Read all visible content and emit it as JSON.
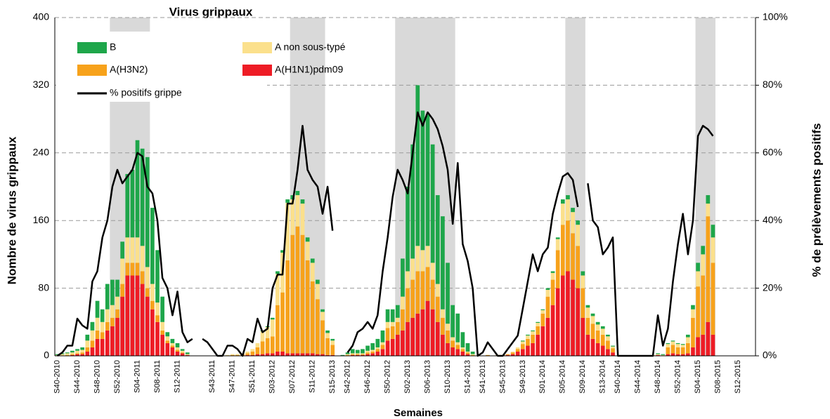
{
  "chart_data": {
    "type": "bar",
    "stacked": true,
    "title": "Virus grippaux",
    "x_label": "Semaines",
    "y_label": "Nombre de virus grippaux",
    "y2_label": "% de prélèvements positifs",
    "categories": [
      "S40-2010",
      null,
      null,
      null,
      "S44-2010",
      null,
      null,
      null,
      "S48-2010",
      null,
      null,
      null,
      "S52-2010",
      null,
      null,
      null,
      "S04-2011",
      null,
      null,
      null,
      "S08-2011",
      null,
      null,
      null,
      "S12-2011",
      null,
      null,
      null,
      null,
      null,
      null,
      "S43-2011",
      null,
      null,
      null,
      "S47-2011",
      null,
      null,
      null,
      "S51-2011",
      null,
      null,
      null,
      "S03-2012",
      null,
      null,
      null,
      "S07-2012",
      null,
      null,
      null,
      "S11-2012",
      null,
      null,
      null,
      "S15-2013",
      null,
      null,
      "S42-2012",
      null,
      null,
      null,
      "S46-2012",
      null,
      null,
      null,
      "S50-2012",
      null,
      null,
      null,
      "S02-2013",
      null,
      null,
      null,
      "S06-2013",
      null,
      null,
      null,
      "S10-2013",
      null,
      null,
      null,
      "S14-2013",
      null,
      null,
      "S41-2013",
      null,
      null,
      null,
      "S45-2013",
      null,
      null,
      null,
      "S49-2013",
      null,
      null,
      null,
      "S01-2014",
      null,
      null,
      null,
      "S05-2014",
      null,
      null,
      null,
      "S09-2014",
      null,
      null,
      null,
      "S13-2014",
      null,
      null,
      "S40-2014",
      null,
      null,
      null,
      "S44-2014",
      null,
      null,
      null,
      "S48-2014",
      null,
      null,
      null,
      "S52-2014",
      null,
      null,
      null,
      "S04-2015",
      null,
      null,
      null,
      "S08-2015",
      null,
      null,
      null,
      "S12-2015",
      null,
      null,
      null
    ],
    "series": [
      {
        "name": "B",
        "color": "#1ea64a",
        "values": [
          1,
          1,
          1,
          2,
          2,
          3,
          7,
          10,
          20,
          15,
          30,
          30,
          20,
          20,
          75,
          80,
          115,
          115,
          130,
          90,
          62,
          30,
          5,
          5,
          5,
          2,
          2,
          0,
          0,
          0,
          0,
          0,
          0,
          0,
          0,
          0,
          0,
          0,
          0,
          0,
          0,
          1,
          1,
          2,
          3,
          3,
          4,
          5,
          5,
          5,
          5,
          5,
          5,
          3,
          3,
          2,
          0,
          1,
          2,
          5,
          4,
          5,
          6,
          8,
          10,
          14,
          15,
          15,
          15,
          45,
          100,
          135,
          190,
          165,
          155,
          140,
          105,
          110,
          72,
          38,
          34,
          18,
          10,
          3,
          0,
          0,
          0,
          0,
          0,
          0,
          0,
          0,
          0,
          1,
          1,
          1,
          1,
          1,
          2,
          2,
          2,
          5,
          5,
          5,
          5,
          5,
          3,
          3,
          3,
          3,
          2,
          1,
          0,
          0,
          0,
          0,
          0,
          0,
          0,
          0,
          1,
          1,
          1,
          1,
          1,
          1,
          3,
          5,
          10,
          10,
          10,
          15,
          0,
          0,
          0,
          0,
          0,
          0,
          0,
          0
        ]
      },
      {
        "name": "A non sous-typé",
        "color": "#fbe08c",
        "values": [
          1,
          2,
          2,
          2,
          3,
          3,
          8,
          12,
          15,
          12,
          15,
          15,
          15,
          30,
          30,
          30,
          30,
          30,
          25,
          20,
          15,
          10,
          5,
          3,
          3,
          2,
          1,
          0,
          0,
          0,
          0,
          0,
          0,
          0,
          1,
          1,
          1,
          1,
          2,
          3,
          5,
          12,
          13,
          20,
          37,
          47,
          68,
          42,
          37,
          37,
          22,
          22,
          18,
          10,
          6,
          5,
          0,
          0,
          1,
          1,
          1,
          1,
          2,
          2,
          2,
          3,
          7,
          5,
          5,
          15,
          20,
          25,
          30,
          25,
          25,
          20,
          15,
          10,
          8,
          4,
          3,
          2,
          1,
          1,
          0,
          0,
          0,
          0,
          0,
          0,
          0,
          1,
          2,
          3,
          4,
          4,
          4,
          4,
          8,
          8,
          13,
          25,
          25,
          25,
          25,
          15,
          12,
          9,
          7,
          7,
          5,
          2,
          0,
          0,
          0,
          0,
          0,
          0,
          0,
          1,
          1,
          1,
          4,
          4,
          4,
          3,
          7,
          10,
          18,
          25,
          15,
          30,
          0,
          0,
          0,
          0,
          0,
          0,
          0,
          0
        ]
      },
      {
        "name": "A(H3N2)",
        "color": "#f7a21b",
        "values": [
          0,
          0,
          1,
          1,
          1,
          2,
          5,
          8,
          10,
          8,
          10,
          10,
          10,
          15,
          15,
          15,
          15,
          15,
          10,
          10,
          8,
          5,
          3,
          2,
          2,
          1,
          0,
          0,
          0,
          0,
          0,
          0,
          0,
          0,
          0,
          1,
          1,
          2,
          2,
          4,
          8,
          15,
          18,
          20,
          55,
          70,
          110,
          140,
          150,
          140,
          110,
          85,
          65,
          40,
          20,
          12,
          0,
          0,
          1,
          1,
          1,
          1,
          2,
          2,
          3,
          5,
          15,
          15,
          15,
          25,
          40,
          45,
          50,
          45,
          40,
          35,
          30,
          20,
          15,
          8,
          5,
          3,
          2,
          1,
          0,
          0,
          1,
          0,
          1,
          1,
          1,
          2,
          3,
          6,
          8,
          10,
          10,
          15,
          25,
          30,
          45,
          60,
          60,
          55,
          50,
          35,
          20,
          18,
          15,
          13,
          10,
          5,
          0,
          0,
          0,
          0,
          0,
          0,
          0,
          0,
          0,
          0,
          8,
          10,
          8,
          8,
          12,
          35,
          60,
          70,
          125,
          85,
          0,
          0,
          0,
          0,
          0,
          0,
          0,
          0
        ]
      },
      {
        "name": "A(H1N1)pdm09",
        "color": "#ee1c25",
        "values": [
          0,
          0,
          0,
          1,
          2,
          2,
          5,
          10,
          20,
          20,
          30,
          35,
          45,
          70,
          95,
          95,
          95,
          85,
          70,
          55,
          40,
          25,
          15,
          10,
          5,
          3,
          1,
          0,
          0,
          0,
          0,
          0,
          0,
          0,
          0,
          0,
          0,
          0,
          1,
          1,
          2,
          2,
          3,
          3,
          5,
          5,
          3,
          3,
          3,
          3,
          3,
          3,
          2,
          2,
          1,
          1,
          0,
          0,
          0,
          1,
          1,
          1,
          2,
          3,
          5,
          8,
          18,
          20,
          25,
          30,
          40,
          45,
          50,
          55,
          65,
          55,
          40,
          25,
          15,
          10,
          8,
          5,
          2,
          0,
          0,
          0,
          0,
          0,
          0,
          0,
          1,
          2,
          5,
          8,
          12,
          15,
          25,
          35,
          45,
          60,
          80,
          95,
          100,
          90,
          80,
          45,
          25,
          20,
          15,
          12,
          8,
          4,
          0,
          0,
          0,
          0,
          0,
          0,
          0,
          0,
          1,
          0,
          2,
          3,
          2,
          2,
          3,
          10,
          22,
          25,
          40,
          25,
          0,
          0,
          0,
          0,
          0,
          0,
          0,
          0
        ]
      },
      {
        "name": "% positifs grippe",
        "color": "#000000",
        "type": "line",
        "axis": "y2",
        "values": [
          0,
          1,
          3,
          3,
          11,
          9,
          8,
          22,
          25,
          35,
          40,
          50,
          55,
          51,
          53,
          55,
          60,
          59,
          50,
          48,
          40,
          23,
          20,
          12,
          19,
          7,
          4,
          5,
          null,
          5,
          4,
          2,
          0,
          0,
          3,
          3,
          2,
          0,
          5,
          4,
          11,
          7,
          8,
          20,
          24,
          24,
          45,
          45,
          55,
          68,
          55,
          52,
          50,
          42,
          50,
          37,
          null,
          null,
          1,
          3,
          7,
          8,
          10,
          8,
          12,
          25,
          35,
          47,
          55,
          52,
          48,
          60,
          72,
          68,
          72,
          70,
          67,
          62,
          55,
          39,
          57,
          33,
          28,
          20,
          0,
          1,
          4,
          2,
          0,
          0,
          2,
          4,
          6,
          14,
          22,
          30,
          25,
          30,
          32,
          42,
          48,
          53,
          54,
          52,
          44,
          null,
          51,
          40,
          38,
          30,
          32,
          35,
          0,
          0,
          0,
          0,
          0,
          0,
          0,
          0,
          12,
          3,
          8,
          22,
          33,
          42,
          30,
          40,
          65,
          68,
          67,
          65,
          null,
          null,
          null,
          null,
          null,
          null,
          null,
          null
        ]
      }
    ],
    "ylim": [
      0,
      400
    ],
    "yticks": [
      0,
      80,
      160,
      240,
      320,
      400
    ],
    "y2lim": [
      0,
      100
    ],
    "y2ticks": [
      {
        "value": 0,
        "label": "0%"
      },
      {
        "value": 20,
        "label": "20%"
      },
      {
        "value": 40,
        "label": "40%"
      },
      {
        "value": 60,
        "label": "60%"
      },
      {
        "value": 80,
        "label": "80%"
      },
      {
        "value": 100,
        "label": "100%"
      }
    ],
    "grid": true
  }
}
